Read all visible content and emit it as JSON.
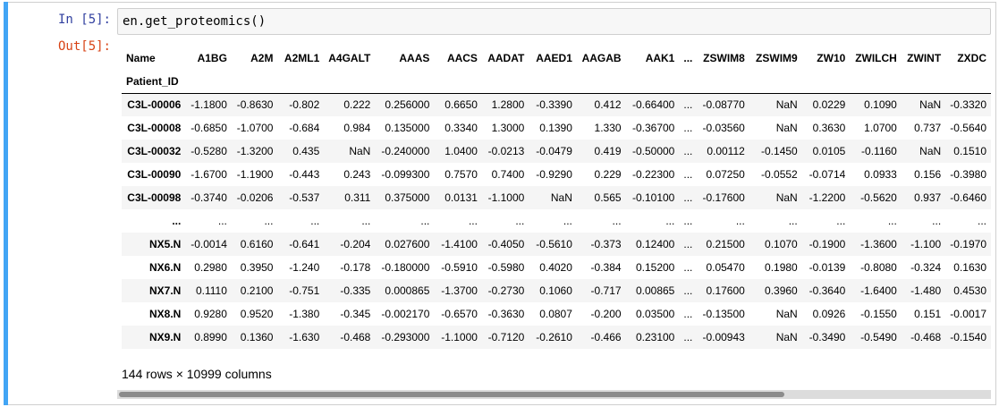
{
  "cell": {
    "in_prompt": "In [5]:",
    "out_prompt": "Out[5]:",
    "code": "en.get_proteomics()"
  },
  "dataframe": {
    "columns_name": "Name",
    "index_name": "Patient_ID",
    "columns": [
      "A1BG",
      "A2M",
      "A2ML1",
      "A4GALT",
      "AAAS",
      "AACS",
      "AADAT",
      "AAED1",
      "AAGAB",
      "AAK1",
      "...",
      "ZSWIM8",
      "ZSWIM9",
      "ZW10",
      "ZWILCH",
      "ZWINT",
      "ZXDC"
    ],
    "rows": [
      {
        "index": "C3L-00006",
        "values": [
          "-1.1800",
          "-0.8630",
          "-0.802",
          "0.222",
          "0.256000",
          "0.6650",
          "1.2800",
          "-0.3390",
          "0.412",
          "-0.66400",
          "...",
          "-0.08770",
          "NaN",
          "0.0229",
          "0.1090",
          "NaN",
          "-0.3320"
        ]
      },
      {
        "index": "C3L-00008",
        "values": [
          "-0.6850",
          "-1.0700",
          "-0.684",
          "0.984",
          "0.135000",
          "0.3340",
          "1.3000",
          "0.1390",
          "1.330",
          "-0.36700",
          "...",
          "-0.03560",
          "NaN",
          "0.3630",
          "1.0700",
          "0.737",
          "-0.5640"
        ]
      },
      {
        "index": "C3L-00032",
        "values": [
          "-0.5280",
          "-1.3200",
          "0.435",
          "NaN",
          "-0.240000",
          "1.0400",
          "-0.0213",
          "-0.0479",
          "0.419",
          "-0.50000",
          "...",
          "0.00112",
          "-0.1450",
          "0.0105",
          "-0.1160",
          "NaN",
          "0.1510"
        ]
      },
      {
        "index": "C3L-00090",
        "values": [
          "-1.6700",
          "-1.1900",
          "-0.443",
          "0.243",
          "-0.099300",
          "0.7570",
          "0.7400",
          "-0.9290",
          "0.229",
          "-0.22300",
          "...",
          "0.07250",
          "-0.0552",
          "-0.0714",
          "0.0933",
          "0.156",
          "-0.3980"
        ]
      },
      {
        "index": "C3L-00098",
        "values": [
          "-0.3740",
          "-0.0206",
          "-0.537",
          "0.311",
          "0.375000",
          "0.0131",
          "-1.1000",
          "NaN",
          "0.565",
          "-0.10100",
          "...",
          "-0.17600",
          "NaN",
          "-1.2200",
          "-0.5620",
          "0.937",
          "-0.6460"
        ]
      },
      {
        "index": "...",
        "values": [
          "...",
          "...",
          "...",
          "...",
          "...",
          "...",
          "...",
          "...",
          "...",
          "...",
          "...",
          "...",
          "...",
          "...",
          "...",
          "...",
          "..."
        ]
      },
      {
        "index": "NX5.N",
        "values": [
          "-0.0014",
          "0.6160",
          "-0.641",
          "-0.204",
          "0.027600",
          "-1.4100",
          "-0.4050",
          "-0.5610",
          "-0.373",
          "0.12400",
          "...",
          "0.21500",
          "0.1070",
          "-0.1900",
          "-1.3600",
          "-1.100",
          "-0.1970"
        ]
      },
      {
        "index": "NX6.N",
        "values": [
          "0.2980",
          "0.3950",
          "-1.240",
          "-0.178",
          "-0.180000",
          "-0.5910",
          "-0.5980",
          "0.4020",
          "-0.384",
          "0.15200",
          "...",
          "0.05470",
          "0.1980",
          "-0.0139",
          "-0.8080",
          "-0.324",
          "0.1630"
        ]
      },
      {
        "index": "NX7.N",
        "values": [
          "0.1110",
          "0.2100",
          "-0.751",
          "-0.335",
          "0.000865",
          "-1.3700",
          "-0.2730",
          "0.1060",
          "-0.717",
          "0.00865",
          "...",
          "0.17600",
          "0.3960",
          "-0.3640",
          "-1.6400",
          "-1.480",
          "0.4530"
        ]
      },
      {
        "index": "NX8.N",
        "values": [
          "0.9280",
          "0.9520",
          "-1.380",
          "-0.345",
          "-0.002170",
          "-0.6570",
          "-0.3630",
          "0.0807",
          "-0.200",
          "0.03500",
          "...",
          "-0.13500",
          "NaN",
          "0.0926",
          "-0.1550",
          "0.151",
          "-0.0017"
        ]
      },
      {
        "index": "NX9.N",
        "values": [
          "0.8990",
          "0.1360",
          "-1.630",
          "-0.468",
          "-0.293000",
          "-1.1000",
          "-0.7120",
          "-0.2610",
          "-0.466",
          "0.23100",
          "...",
          "-0.00943",
          "NaN",
          "-0.3490",
          "-0.5490",
          "-0.468",
          "-0.1540"
        ]
      }
    ],
    "shape_text": "144 rows × 10999 columns"
  },
  "colors": {
    "cell_bar": "#42a5f5",
    "in_prompt": "#303f9f",
    "out_prompt": "#d84315"
  }
}
